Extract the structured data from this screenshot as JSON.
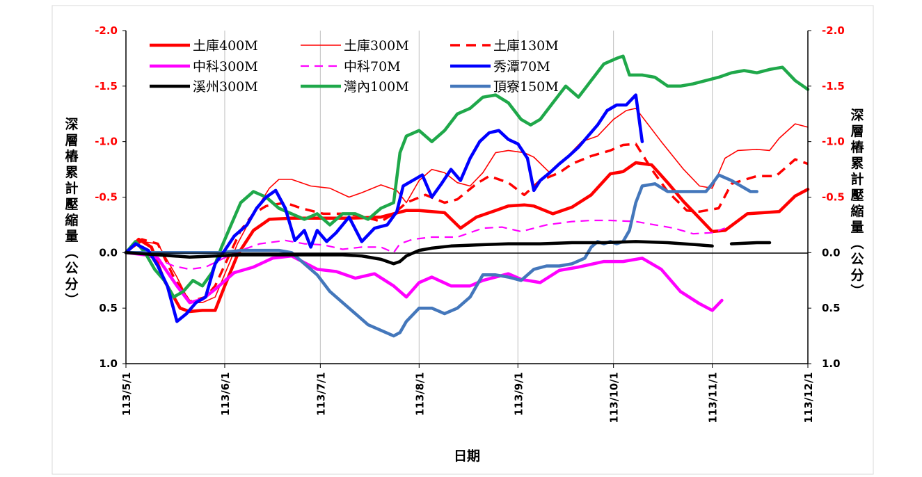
{
  "chart_data": {
    "type": "line",
    "xlabel": "日期",
    "ylabel": "深層樁累計壓縮量(公分)",
    "ylim": [
      1.0,
      -2.0
    ],
    "y_ticks": [
      "-2.0",
      "-1.5",
      "-1.0",
      "-0.5",
      "0.0",
      "0.5",
      "1.0"
    ],
    "y_tick_values": [
      -2.0,
      -1.5,
      -1.0,
      -0.5,
      0.0,
      0.5,
      1.0
    ],
    "x_tick_labels": [
      "113/5/1",
      "113/6/1",
      "113/7/1",
      "113/8/1",
      "113/9/1",
      "113/10/1",
      "113/11/1",
      "113/12/1"
    ],
    "x_range_days": [
      0,
      214
    ],
    "x_tick_days": [
      0,
      31,
      61,
      92,
      123,
      153,
      184,
      214
    ],
    "grid": "vertical",
    "legend_position": "top-left",
    "colors": {
      "left_ticks": "#ff0000",
      "right_ticks": "#ff0000",
      "zero_ticks": "#000000"
    },
    "series": [
      {
        "name": "土庫400M",
        "color": "#ff0000",
        "style": "solid-thick",
        "x": [
          0,
          4,
          8,
          12,
          17,
          20,
          24,
          28,
          31,
          35,
          40,
          45,
          52,
          60,
          70,
          80,
          84,
          88,
          92,
          96,
          100,
          105,
          110,
          116,
          120,
          125,
          128,
          134,
          140,
          146,
          152,
          156,
          160,
          165,
          170,
          175,
          180,
          184,
          188,
          195,
          200,
          205,
          210,
          214
        ],
        "y": [
          0.0,
          -0.12,
          -0.05,
          0.25,
          0.5,
          0.53,
          0.52,
          0.52,
          0.3,
          0.02,
          -0.2,
          -0.3,
          -0.31,
          -0.31,
          -0.31,
          -0.32,
          -0.35,
          -0.38,
          -0.38,
          -0.37,
          -0.36,
          -0.22,
          -0.32,
          -0.38,
          -0.42,
          -0.43,
          -0.42,
          -0.35,
          -0.41,
          -0.52,
          -0.71,
          -0.73,
          -0.81,
          -0.79,
          -0.63,
          -0.46,
          -0.31,
          -0.19,
          -0.2,
          -0.35,
          -0.36,
          -0.37,
          -0.51,
          -0.57
        ]
      },
      {
        "name": "土庫300M",
        "color": "#ff0000",
        "style": "solid-thin",
        "x": [
          0,
          5,
          10,
          16,
          20,
          24,
          28,
          35,
          40,
          45,
          48,
          52,
          58,
          64,
          70,
          74,
          80,
          85,
          88,
          92,
          96,
          100,
          104,
          108,
          112,
          116,
          120,
          125,
          128,
          133,
          138,
          143,
          148,
          153,
          157,
          160,
          168,
          175,
          180,
          184,
          188,
          192,
          198,
          202,
          205,
          210,
          214
        ],
        "y": [
          0.0,
          -0.1,
          -0.08,
          0.22,
          0.45,
          0.45,
          0.4,
          -0.08,
          -0.35,
          -0.58,
          -0.66,
          -0.66,
          -0.6,
          -0.58,
          -0.5,
          -0.54,
          -0.61,
          -0.56,
          -0.45,
          -0.65,
          -0.75,
          -0.72,
          -0.63,
          -0.6,
          -0.72,
          -0.9,
          -0.92,
          -0.9,
          -0.86,
          -0.72,
          -0.85,
          -1.0,
          -1.05,
          -1.2,
          -1.28,
          -1.3,
          -1.0,
          -0.75,
          -0.6,
          -0.58,
          -0.85,
          -0.92,
          -0.93,
          -0.92,
          -1.03,
          -1.16,
          -1.13
        ]
      },
      {
        "name": "土庫130M",
        "color": "#ff0000",
        "style": "dashed-thick",
        "x": [
          0,
          5,
          10,
          15,
          20,
          25,
          28,
          32,
          36,
          40,
          44,
          50,
          55,
          62,
          68,
          74,
          80,
          84,
          88,
          94,
          100,
          104,
          110,
          114,
          120,
          125,
          130,
          136,
          140,
          146,
          152,
          156,
          160,
          165,
          170,
          176,
          180,
          186,
          190,
          198,
          204,
          210,
          214
        ],
        "y": [
          0.0,
          -0.12,
          -0.08,
          0.22,
          0.44,
          0.4,
          0.3,
          0.05,
          -0.2,
          -0.35,
          -0.42,
          -0.45,
          -0.4,
          -0.35,
          -0.35,
          -0.33,
          -0.28,
          -0.35,
          -0.45,
          -0.52,
          -0.45,
          -0.48,
          -0.62,
          -0.69,
          -0.63,
          -0.52,
          -0.65,
          -0.72,
          -0.8,
          -0.87,
          -0.92,
          -0.97,
          -0.98,
          -0.75,
          -0.55,
          -0.38,
          -0.37,
          -0.4,
          -0.62,
          -0.69,
          -0.69,
          -0.84,
          -0.8
        ]
      },
      {
        "name": "中科300M",
        "color": "#ff00ff",
        "style": "solid-thick",
        "x": [
          0,
          6,
          10,
          16,
          20,
          24,
          28,
          34,
          40,
          46,
          52,
          60,
          66,
          72,
          78,
          84,
          88,
          92,
          96,
          102,
          108,
          112,
          120,
          124,
          130,
          136,
          142,
          150,
          156,
          162,
          168,
          174,
          180,
          184,
          187
        ],
        "y": [
          0.0,
          0.02,
          0.05,
          0.3,
          0.45,
          0.42,
          0.33,
          0.18,
          0.13,
          0.05,
          0.03,
          0.15,
          0.17,
          0.23,
          0.19,
          0.3,
          0.4,
          0.27,
          0.22,
          0.3,
          0.3,
          0.25,
          0.19,
          0.24,
          0.27,
          0.16,
          0.13,
          0.08,
          0.08,
          0.05,
          0.15,
          0.35,
          0.46,
          0.52,
          0.43
        ]
      },
      {
        "name": "中科70M",
        "color": "#ff00ff",
        "style": "dashed-thin",
        "x": [
          0,
          6,
          10,
          15,
          20,
          25,
          30,
          36,
          42,
          50,
          56,
          62,
          68,
          74,
          80,
          84,
          86,
          90,
          96,
          104,
          112,
          118,
          124,
          132,
          140,
          146,
          152,
          160,
          166,
          172,
          178,
          184,
          188
        ],
        "y": [
          0.0,
          0.02,
          0.06,
          0.12,
          0.15,
          0.13,
          0.06,
          -0.02,
          -0.08,
          -0.11,
          -0.08,
          -0.07,
          -0.03,
          -0.05,
          -0.05,
          0.0,
          -0.08,
          -0.12,
          -0.14,
          -0.14,
          -0.22,
          -0.23,
          -0.19,
          -0.25,
          -0.28,
          -0.29,
          -0.29,
          -0.28,
          -0.25,
          -0.22,
          -0.17,
          -0.18,
          -0.22
        ]
      },
      {
        "name": "秀潭70M",
        "color": "#0000ff",
        "style": "solid-thick",
        "x": [
          0,
          3,
          7,
          10,
          13,
          16,
          19,
          22,
          25,
          28,
          31,
          34,
          38,
          41,
          44,
          47,
          50,
          53,
          56,
          58,
          60,
          63,
          66,
          70,
          74,
          78,
          82,
          85,
          87,
          90,
          93,
          96,
          99,
          102,
          105,
          108,
          111,
          114,
          117,
          120,
          123,
          126,
          128,
          130,
          133,
          136,
          139,
          142,
          145,
          148,
          151,
          154,
          157,
          160,
          162
        ],
        "y": [
          0.0,
          -0.08,
          -0.02,
          0.12,
          0.3,
          0.62,
          0.55,
          0.45,
          0.4,
          0.1,
          -0.02,
          -0.15,
          -0.25,
          -0.4,
          -0.5,
          -0.56,
          -0.4,
          -0.11,
          -0.2,
          -0.05,
          -0.2,
          -0.1,
          -0.18,
          -0.32,
          -0.1,
          -0.22,
          -0.25,
          -0.37,
          -0.6,
          -0.65,
          -0.7,
          -0.5,
          -0.62,
          -0.75,
          -0.65,
          -0.85,
          -1.0,
          -1.08,
          -1.1,
          -1.02,
          -0.98,
          -0.85,
          -0.56,
          -0.65,
          -0.72,
          -0.8,
          -0.87,
          -0.95,
          -1.05,
          -1.15,
          -1.28,
          -1.33,
          -1.33,
          -1.42,
          -1.0
        ]
      },
      {
        "name": "溪州300M",
        "color": "#000000",
        "style": "solid-thick",
        "x": [
          0,
          10,
          20,
          28,
          36,
          44,
          52,
          60,
          68,
          74,
          80,
          84,
          86,
          88,
          92,
          96,
          102,
          110,
          120,
          130,
          140,
          150,
          160,
          170,
          180,
          184,
          185,
          190,
          198,
          202
        ],
        "y": [
          0.0,
          0.02,
          0.04,
          0.03,
          0.02,
          0.02,
          0.02,
          0.02,
          0.02,
          0.03,
          0.06,
          0.1,
          0.08,
          0.03,
          -0.02,
          -0.04,
          -0.06,
          -0.07,
          -0.08,
          -0.08,
          -0.09,
          -0.09,
          -0.1,
          -0.09,
          -0.07,
          -0.06,
          null,
          -0.08,
          -0.09,
          -0.09
        ]
      },
      {
        "name": "灣內100M",
        "color": "#1fa84a",
        "style": "solid-thick",
        "x": [
          0,
          3,
          6,
          9,
          12,
          15,
          18,
          21,
          24,
          27,
          30,
          33,
          36,
          40,
          44,
          48,
          52,
          56,
          60,
          64,
          68,
          72,
          76,
          80,
          84,
          86,
          88,
          92,
          96,
          100,
          104,
          108,
          112,
          116,
          120,
          124,
          127,
          130,
          134,
          138,
          142,
          146,
          150,
          154,
          156,
          158,
          162,
          166,
          170,
          174,
          178,
          182,
          186,
          190,
          194,
          198,
          202,
          206,
          210,
          214
        ],
        "y": [
          0.0,
          -0.1,
          0.0,
          0.15,
          0.25,
          0.4,
          0.35,
          0.25,
          0.3,
          0.18,
          -0.05,
          -0.25,
          -0.45,
          -0.55,
          -0.5,
          -0.4,
          -0.35,
          -0.3,
          -0.35,
          -0.25,
          -0.35,
          -0.35,
          -0.3,
          -0.4,
          -0.45,
          -0.9,
          -1.05,
          -1.1,
          -1.0,
          -1.1,
          -1.25,
          -1.3,
          -1.4,
          -1.42,
          -1.35,
          -1.2,
          -1.15,
          -1.2,
          -1.35,
          -1.5,
          -1.4,
          -1.55,
          -1.7,
          -1.75,
          -1.77,
          -1.6,
          -1.6,
          -1.58,
          -1.5,
          -1.5,
          -1.52,
          -1.55,
          -1.58,
          -1.62,
          -1.64,
          -1.62,
          -1.65,
          -1.67,
          -1.55,
          -1.47
        ]
      },
      {
        "name": "頂寮150M",
        "color": "#4477bb",
        "style": "solid-thick",
        "x": [
          0,
          6,
          12,
          18,
          24,
          30,
          36,
          42,
          48,
          52,
          56,
          60,
          64,
          68,
          72,
          76,
          80,
          84,
          86,
          88,
          92,
          96,
          100,
          104,
          108,
          112,
          116,
          120,
          124,
          128,
          132,
          136,
          140,
          144,
          146,
          148,
          150,
          152,
          154,
          156,
          158,
          160,
          162,
          166,
          170,
          176,
          182,
          184,
          186,
          190,
          196,
          198
        ],
        "y": [
          0.0,
          0.0,
          0.0,
          0.0,
          0.0,
          0.0,
          -0.02,
          -0.02,
          -0.02,
          0.0,
          0.1,
          0.2,
          0.35,
          0.45,
          0.55,
          0.65,
          0.7,
          0.75,
          0.72,
          0.62,
          0.5,
          0.5,
          0.55,
          0.5,
          0.4,
          0.2,
          0.2,
          0.22,
          0.25,
          0.15,
          0.12,
          0.12,
          0.1,
          0.05,
          -0.05,
          -0.1,
          -0.08,
          -0.1,
          -0.08,
          -0.1,
          -0.2,
          -0.45,
          -0.6,
          -0.62,
          -0.55,
          -0.55,
          -0.55,
          -0.62,
          -0.7,
          -0.65,
          -0.55,
          -0.55
        ]
      }
    ]
  }
}
